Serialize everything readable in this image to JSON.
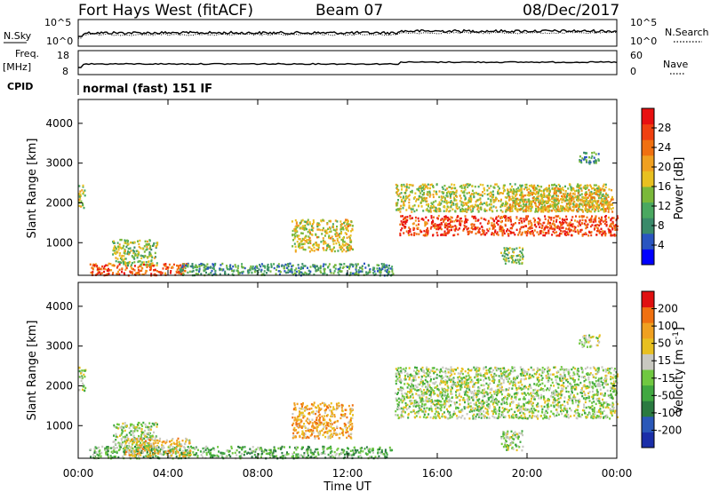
{
  "header": {
    "title": "Fort Hays West (fitACF)",
    "beam": "Beam 07",
    "date": "08/Dec/2017"
  },
  "top_panels": {
    "nsky_label": "N.Sky",
    "nsky_ticks": [
      "10^5",
      "10^0"
    ],
    "nsearch_label": "N.Search",
    "nsearch_ticks": [
      "10^5",
      "10^0"
    ],
    "freq_label": "Freq.",
    "freq_unit": "[MHz]",
    "freq_ticks": [
      "18",
      "8"
    ],
    "nave_label": "Nave",
    "nave_ticks": [
      "60",
      "0"
    ],
    "cpid_label": "CPID",
    "cpid_text": "normal (fast) 151 IF"
  },
  "chart_data": [
    {
      "type": "heatmap",
      "name": "power",
      "ylabel": "Slant Range [km]",
      "ylim": [
        180,
        4600
      ],
      "yticks": [
        1000,
        2000,
        3000,
        4000
      ],
      "xlim": [
        0,
        24
      ],
      "colorbar_label": "Power [dB]",
      "colorbar_ticks": [
        "4",
        "8",
        "12",
        "16",
        "20",
        "24",
        "28"
      ],
      "colorbar_colors": [
        "#0000ff",
        "#2a55c0",
        "#3a8a6a",
        "#4aa860",
        "#7ab83a",
        "#e8c020",
        "#f0a020",
        "#f07010",
        "#f04010",
        "#e81010"
      ],
      "regions": [
        {
          "t0": 0.0,
          "t1": 0.3,
          "r0": 1900,
          "r1": 2500,
          "level": 0.5
        },
        {
          "t0": 0.5,
          "t1": 4.8,
          "r0": 200,
          "r1": 500,
          "level": 0.8
        },
        {
          "t0": 1.5,
          "t1": 3.5,
          "r0": 450,
          "r1": 1100,
          "level": 0.45
        },
        {
          "t0": 4.5,
          "t1": 14.0,
          "r0": 200,
          "r1": 500,
          "level": 0.3
        },
        {
          "t0": 9.5,
          "t1": 12.2,
          "r0": 800,
          "r1": 1600,
          "level": 0.55
        },
        {
          "t0": 14.1,
          "t1": 23.5,
          "r0": 1800,
          "r1": 2500,
          "level": 0.5
        },
        {
          "t0": 14.3,
          "t1": 24.0,
          "r0": 1200,
          "r1": 1700,
          "level": 0.85
        },
        {
          "t0": 19.0,
          "t1": 23.8,
          "r0": 1800,
          "r1": 2400,
          "level": 0.6
        },
        {
          "t0": 22.3,
          "t1": 23.2,
          "r0": 3000,
          "r1": 3300,
          "level": 0.3
        },
        {
          "t0": 18.8,
          "t1": 19.8,
          "r0": 500,
          "r1": 900,
          "level": 0.4
        }
      ]
    },
    {
      "type": "heatmap",
      "name": "velocity",
      "ylabel": "Slant Range [km]",
      "ylim": [
        180,
        4600
      ],
      "yticks": [
        1000,
        2000,
        3000,
        4000
      ],
      "xlim": [
        0,
        24
      ],
      "xticks": [
        "00:00",
        "04:00",
        "08:00",
        "12:00",
        "16:00",
        "20:00",
        "00:00"
      ],
      "xlabel": "Time UT",
      "colorbar_label": "Velocity [m s^-1]",
      "colorbar_ticks": [
        "200",
        "100",
        "50",
        "15",
        "-15",
        "-50",
        "-100",
        "-200"
      ],
      "colorbar_colors": [
        "#1a2ea8",
        "#2a58b8",
        "#2a7a40",
        "#40a840",
        "#70c840",
        "#c8c8c0",
        "#e8c020",
        "#f0a020",
        "#f07010",
        "#e01010"
      ],
      "regions": [
        {
          "t0": 0.0,
          "t1": 0.3,
          "r0": 1900,
          "r1": 2500,
          "level": 0.5
        },
        {
          "t0": 0.5,
          "t1": 14.0,
          "r0": 200,
          "r1": 500,
          "level": 0.38
        },
        {
          "t0": 1.5,
          "t1": 3.5,
          "r0": 450,
          "r1": 1100,
          "level": 0.5
        },
        {
          "t0": 2.0,
          "t1": 5.0,
          "r0": 250,
          "r1": 700,
          "level": 0.65
        },
        {
          "t0": 9.5,
          "t1": 12.2,
          "r0": 700,
          "r1": 1600,
          "level": 0.72
        },
        {
          "t0": 14.1,
          "t1": 24.0,
          "r0": 1200,
          "r1": 2500,
          "level": 0.5
        },
        {
          "t0": 18.8,
          "t1": 19.8,
          "r0": 400,
          "r1": 900,
          "level": 0.5
        },
        {
          "t0": 22.3,
          "t1": 23.2,
          "r0": 3000,
          "r1": 3300,
          "level": 0.5
        }
      ]
    }
  ]
}
